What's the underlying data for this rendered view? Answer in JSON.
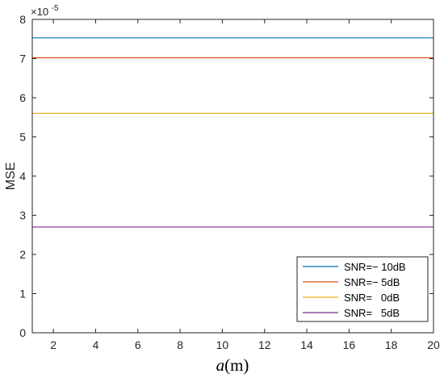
{
  "chart_data": {
    "type": "line",
    "title": "",
    "xlabel_italic": "a",
    "xlabel_unit": "(m)",
    "ylabel": "MSE",
    "y_exponent_base": "×10",
    "y_exponent_power": "-5",
    "xlim": [
      1,
      20
    ],
    "ylim": [
      0,
      8
    ],
    "x_ticks": [
      2,
      4,
      6,
      8,
      10,
      12,
      14,
      16,
      18,
      20
    ],
    "y_ticks": [
      0,
      1,
      2,
      3,
      4,
      5,
      6,
      7,
      8
    ],
    "grid": false,
    "legend_position": "bottom-right",
    "x": [
      1,
      20
    ],
    "series": [
      {
        "name": "SNR=− 10dB",
        "values": [
          7.53,
          7.53
        ],
        "color": "#0072BD"
      },
      {
        "name": "SNR=− 5dB",
        "values": [
          7.02,
          7.02
        ],
        "color": "#D95319"
      },
      {
        "name": "SNR=   0dB",
        "values": [
          5.6,
          5.6
        ],
        "color": "#EDB120"
      },
      {
        "name": "SNR=   5dB",
        "values": [
          2.7,
          2.7
        ],
        "color": "#7E2F8E"
      }
    ]
  }
}
